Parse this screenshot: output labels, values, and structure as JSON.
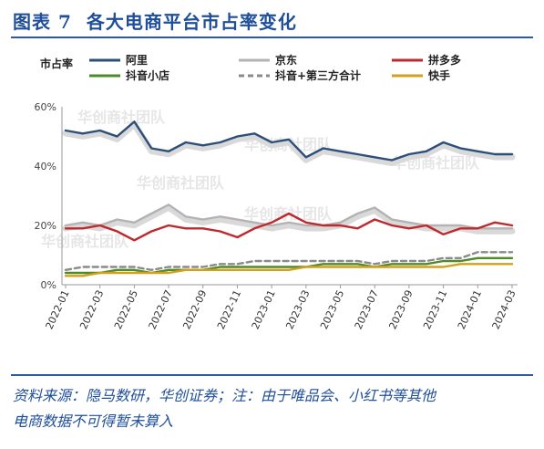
{
  "header": {
    "figure_no": "图表 7",
    "title": "各大电商平台市占率变化"
  },
  "footnote": {
    "line1": "资料来源：隐马数研，华创证券；注：由于唯品会、小红书等其他",
    "line2": "电商数据不可得暂未算入"
  },
  "watermark": "华创商社团队",
  "chart_data": {
    "type": "line",
    "ylabel": "市占率",
    "ylim": [
      0,
      60
    ],
    "yticks": [
      0,
      20,
      40,
      60
    ],
    "ytick_labels": [
      "0%",
      "20%",
      "40%",
      "60%"
    ],
    "x_labels": [
      "2022-01",
      "2022-03",
      "2022-05",
      "2022-07",
      "2022-09",
      "2022-11",
      "2023-01",
      "2023-03",
      "2023-05",
      "2023-07",
      "2023-09",
      "2023-11",
      "2024-01",
      "2024-03"
    ],
    "x_start_month": "2022-01",
    "x_end_month": "2024-03",
    "legend_position": "top",
    "series": [
      {
        "name": "阿里",
        "color": "#2c4f7a",
        "dash": false,
        "shadow": true,
        "points": [
          [
            "2022-01",
            52
          ],
          [
            "2022-02",
            51
          ],
          [
            "2022-03",
            52
          ],
          [
            "2022-04",
            50
          ],
          [
            "2022-05",
            55
          ],
          [
            "2022-06",
            46
          ],
          [
            "2022-07",
            45
          ],
          [
            "2022-08",
            48
          ],
          [
            "2022-09",
            47
          ],
          [
            "2022-10",
            48
          ],
          [
            "2022-11",
            50
          ],
          [
            "2022-12",
            51
          ],
          [
            "2023-01",
            48
          ],
          [
            "2023-02",
            49
          ],
          [
            "2023-03",
            43
          ],
          [
            "2023-04",
            46
          ],
          [
            "2023-05",
            45
          ],
          [
            "2023-06",
            44
          ],
          [
            "2023-07",
            43
          ],
          [
            "2023-08",
            42
          ],
          [
            "2023-09",
            44
          ],
          [
            "2023-10",
            45
          ],
          [
            "2023-11",
            48
          ],
          [
            "2023-12",
            46
          ],
          [
            "2024-01",
            45
          ],
          [
            "2024-02",
            44
          ],
          [
            "2024-03",
            44
          ]
        ]
      },
      {
        "name": "京东",
        "color": "#b3b3b3",
        "dash": false,
        "shadow": true,
        "points": [
          [
            "2022-01",
            20
          ],
          [
            "2022-02",
            21
          ],
          [
            "2022-03",
            20
          ],
          [
            "2022-04",
            22
          ],
          [
            "2022-05",
            21
          ],
          [
            "2022-06",
            24
          ],
          [
            "2022-07",
            27
          ],
          [
            "2022-08",
            23
          ],
          [
            "2022-09",
            22
          ],
          [
            "2022-10",
            23
          ],
          [
            "2022-11",
            22
          ],
          [
            "2022-12",
            21
          ],
          [
            "2023-01",
            20
          ],
          [
            "2023-02",
            21
          ],
          [
            "2023-03",
            20
          ],
          [
            "2023-04",
            20
          ],
          [
            "2023-05",
            21
          ],
          [
            "2023-06",
            24
          ],
          [
            "2023-07",
            26
          ],
          [
            "2023-08",
            22
          ],
          [
            "2023-09",
            21
          ],
          [
            "2023-10",
            20
          ],
          [
            "2023-11",
            20
          ],
          [
            "2023-12",
            20
          ],
          [
            "2024-01",
            19
          ],
          [
            "2024-02",
            19
          ],
          [
            "2024-03",
            19
          ]
        ]
      },
      {
        "name": "拼多多",
        "color": "#c0282d",
        "dash": false,
        "shadow": false,
        "points": [
          [
            "2022-01",
            19
          ],
          [
            "2022-02",
            19
          ],
          [
            "2022-03",
            20
          ],
          [
            "2022-04",
            18
          ],
          [
            "2022-05",
            15
          ],
          [
            "2022-06",
            18
          ],
          [
            "2022-07",
            20
          ],
          [
            "2022-08",
            19
          ],
          [
            "2022-09",
            19
          ],
          [
            "2022-10",
            18
          ],
          [
            "2022-11",
            16
          ],
          [
            "2022-12",
            19
          ],
          [
            "2023-01",
            21
          ],
          [
            "2023-02",
            24
          ],
          [
            "2023-03",
            21
          ],
          [
            "2023-04",
            20
          ],
          [
            "2023-05",
            20
          ],
          [
            "2023-06",
            19
          ],
          [
            "2023-07",
            22
          ],
          [
            "2023-08",
            20
          ],
          [
            "2023-09",
            19
          ],
          [
            "2023-10",
            20
          ],
          [
            "2023-11",
            17
          ],
          [
            "2023-12",
            19
          ],
          [
            "2024-01",
            19
          ],
          [
            "2024-02",
            21
          ],
          [
            "2024-03",
            20
          ]
        ]
      },
      {
        "name": "抖音+第三方合计",
        "color": "#8a8a8a",
        "dash": true,
        "shadow": false,
        "points": [
          [
            "2022-01",
            5
          ],
          [
            "2022-02",
            6
          ],
          [
            "2022-03",
            6
          ],
          [
            "2022-04",
            6
          ],
          [
            "2022-05",
            6
          ],
          [
            "2022-06",
            5
          ],
          [
            "2022-07",
            6
          ],
          [
            "2022-08",
            6
          ],
          [
            "2022-09",
            6
          ],
          [
            "2022-10",
            7
          ],
          [
            "2022-11",
            7
          ],
          [
            "2022-12",
            8
          ],
          [
            "2023-01",
            8
          ],
          [
            "2023-02",
            8
          ],
          [
            "2023-03",
            8
          ],
          [
            "2023-04",
            8
          ],
          [
            "2023-05",
            8
          ],
          [
            "2023-06",
            8
          ],
          [
            "2023-07",
            7
          ],
          [
            "2023-08",
            8
          ],
          [
            "2023-09",
            8
          ],
          [
            "2023-10",
            8
          ],
          [
            "2023-11",
            9
          ],
          [
            "2023-12",
            9
          ],
          [
            "2024-01",
            11
          ],
          [
            "2024-02",
            11
          ],
          [
            "2024-03",
            11
          ]
        ]
      },
      {
        "name": "抖音小店",
        "color": "#4f8a2a",
        "dash": false,
        "shadow": false,
        "points": [
          [
            "2022-01",
            4
          ],
          [
            "2022-02",
            4
          ],
          [
            "2022-03",
            4
          ],
          [
            "2022-04",
            5
          ],
          [
            "2022-05",
            5
          ],
          [
            "2022-06",
            4
          ],
          [
            "2022-07",
            5
          ],
          [
            "2022-08",
            5
          ],
          [
            "2022-09",
            5
          ],
          [
            "2022-10",
            6
          ],
          [
            "2022-11",
            6
          ],
          [
            "2022-12",
            6
          ],
          [
            "2023-01",
            6
          ],
          [
            "2023-02",
            6
          ],
          [
            "2023-03",
            6
          ],
          [
            "2023-04",
            7
          ],
          [
            "2023-05",
            7
          ],
          [
            "2023-06",
            7
          ],
          [
            "2023-07",
            6
          ],
          [
            "2023-08",
            7
          ],
          [
            "2023-09",
            7
          ],
          [
            "2023-10",
            7
          ],
          [
            "2023-11",
            8
          ],
          [
            "2023-12",
            8
          ],
          [
            "2024-01",
            9
          ],
          [
            "2024-02",
            9
          ],
          [
            "2024-03",
            9
          ]
        ]
      },
      {
        "name": "快手",
        "color": "#d4a018",
        "dash": false,
        "shadow": false,
        "points": [
          [
            "2022-01",
            3
          ],
          [
            "2022-02",
            3
          ],
          [
            "2022-03",
            4
          ],
          [
            "2022-04",
            4
          ],
          [
            "2022-05",
            4
          ],
          [
            "2022-06",
            4
          ],
          [
            "2022-07",
            4
          ],
          [
            "2022-08",
            5
          ],
          [
            "2022-09",
            5
          ],
          [
            "2022-10",
            5
          ],
          [
            "2022-11",
            5
          ],
          [
            "2022-12",
            5
          ],
          [
            "2023-01",
            5
          ],
          [
            "2023-02",
            5
          ],
          [
            "2023-03",
            6
          ],
          [
            "2023-04",
            6
          ],
          [
            "2023-05",
            6
          ],
          [
            "2023-06",
            6
          ],
          [
            "2023-07",
            6
          ],
          [
            "2023-08",
            6
          ],
          [
            "2023-09",
            6
          ],
          [
            "2023-10",
            6
          ],
          [
            "2023-11",
            6
          ],
          [
            "2023-12",
            7
          ],
          [
            "2024-01",
            7
          ],
          [
            "2024-02",
            7
          ],
          [
            "2024-03",
            7
          ]
        ]
      }
    ]
  }
}
